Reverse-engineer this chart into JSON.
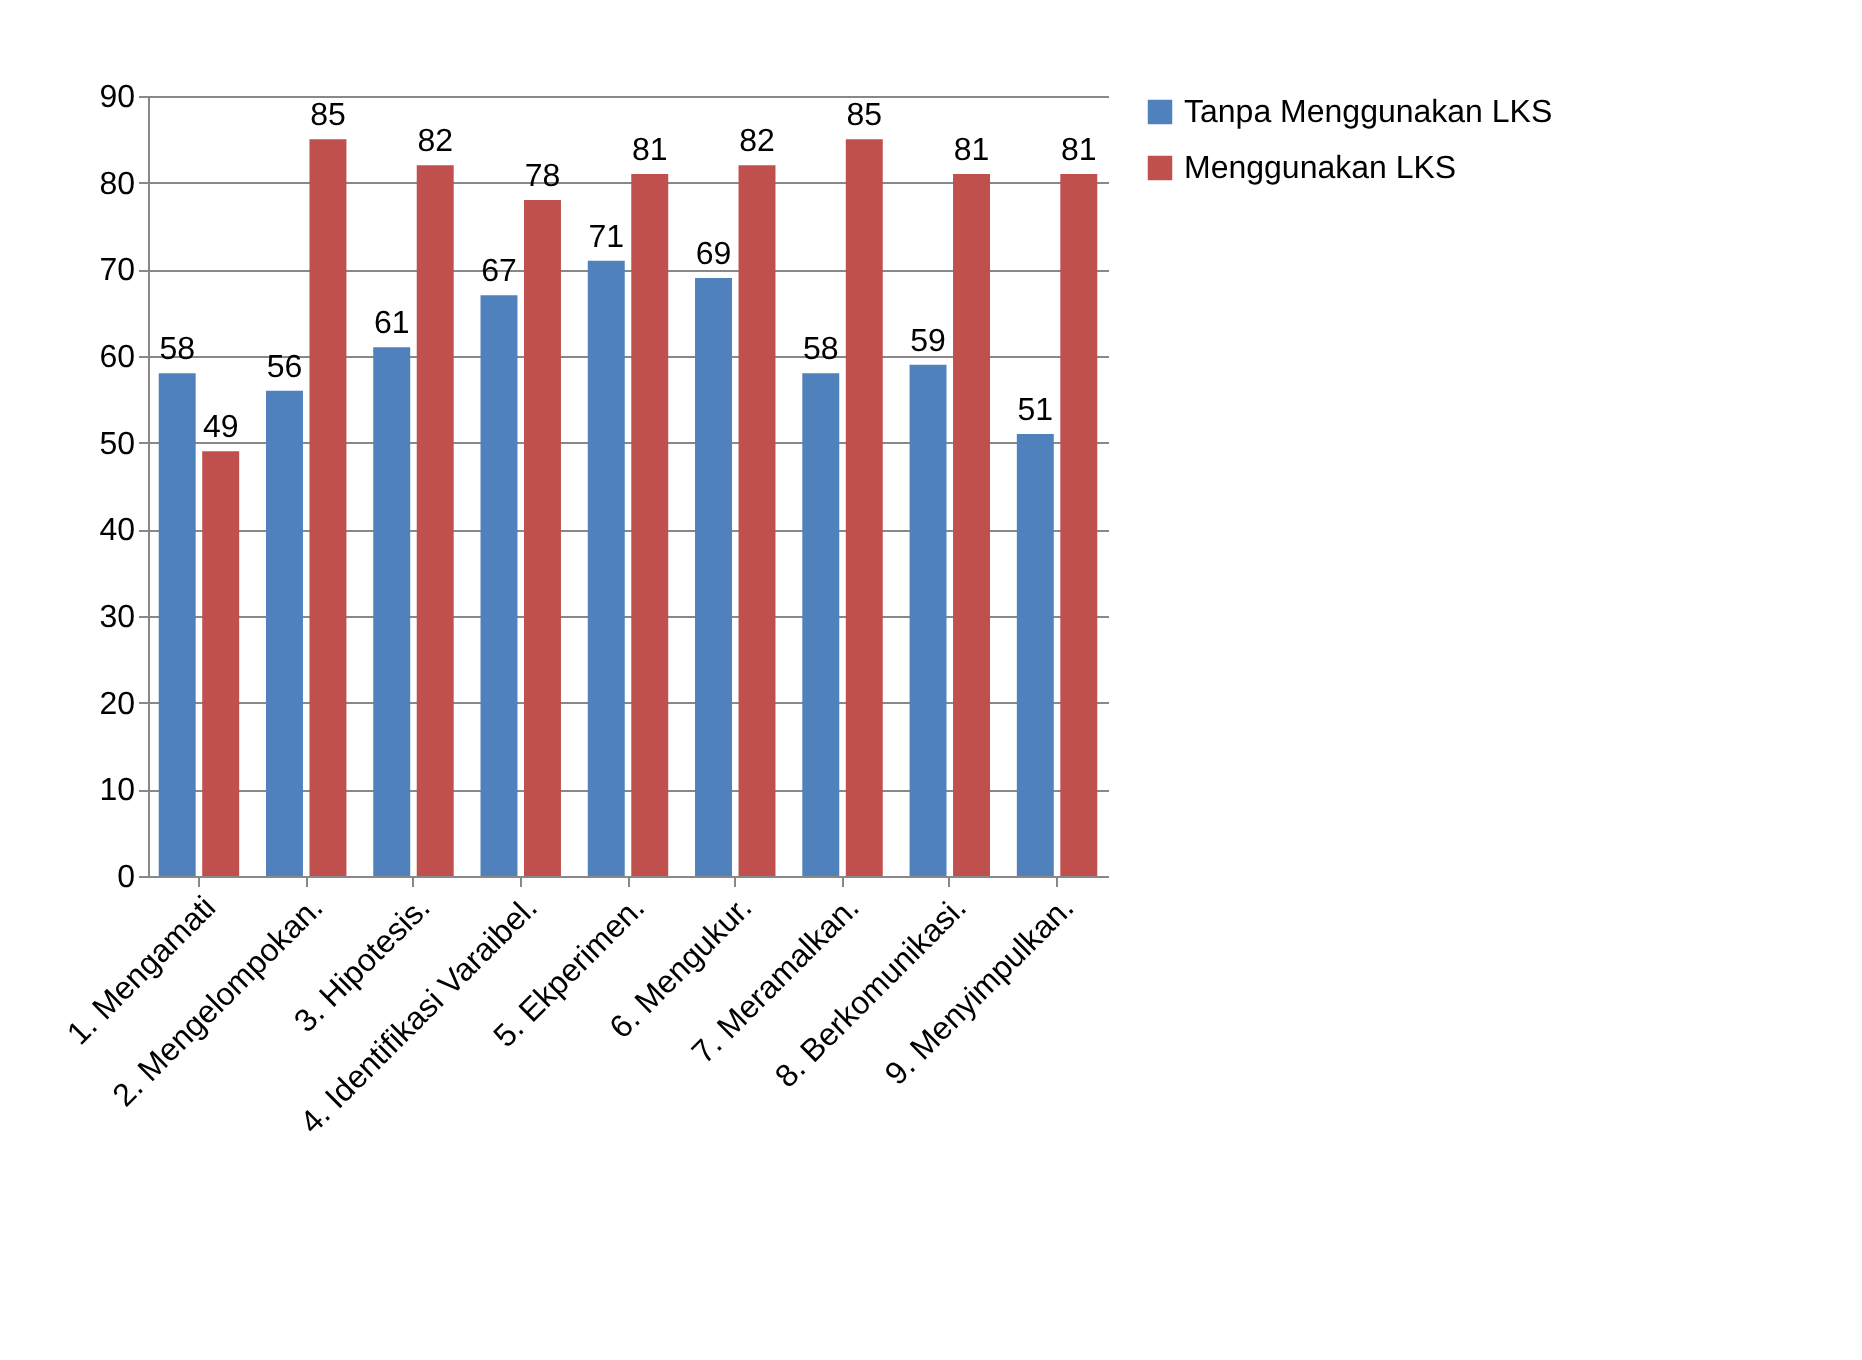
{
  "chart_data": {
    "type": "bar",
    "categories": [
      "1. Mengamati",
      "2. Mengelompokan.",
      "3. Hipotesis.",
      "4. Identifikasi Varaibel.",
      "5. Ekperimen.",
      "6. Mengukur.",
      "7. Meramalkan.",
      "8. Berkomunikasi.",
      "9. Menyimpulkan."
    ],
    "series": [
      {
        "name": "Tanpa Menggunakan LKS",
        "color": "#4f81bd",
        "values": [
          58,
          56,
          61,
          67,
          71,
          69,
          58,
          59,
          51
        ]
      },
      {
        "name": "Menggunakan LKS",
        "color": "#c0504d",
        "values": [
          49,
          85,
          82,
          78,
          81,
          82,
          85,
          81,
          81
        ]
      }
    ],
    "ylim": [
      0,
      90
    ],
    "yticks": [
      0,
      10,
      20,
      30,
      40,
      50,
      60,
      70,
      80,
      90
    ],
    "grid": "y",
    "legend": "right",
    "data_labels": true
  }
}
